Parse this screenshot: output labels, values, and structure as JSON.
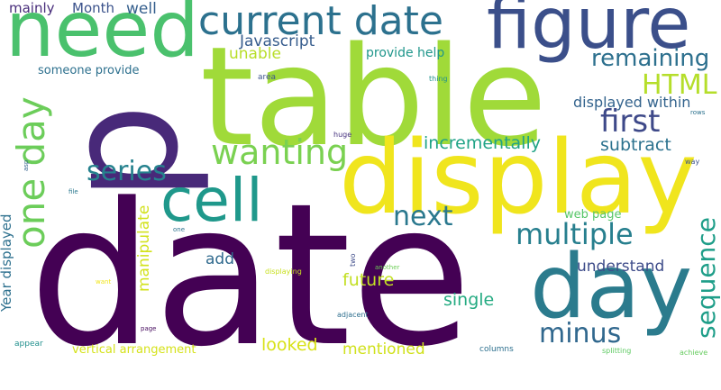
{
  "wordcloud": {
    "words": [
      {
        "text": "date",
        "color": "#440154"
      },
      {
        "text": "table",
        "color": "#a0da39"
      },
      {
        "text": "display",
        "color": "#f0e51d"
      },
      {
        "text": "figure",
        "color": "#3b4f8a"
      },
      {
        "text": "need",
        "color": "#4ac16d"
      },
      {
        "text": "day",
        "color": "#2b7b8d"
      },
      {
        "text": "p",
        "color": "#482979"
      },
      {
        "text": "current date",
        "color": "#2c718e"
      },
      {
        "text": "cell",
        "color": "#1f988b"
      },
      {
        "text": "one day",
        "color": "#6ccd5a"
      },
      {
        "text": "wanting",
        "color": "#7ad151"
      },
      {
        "text": "series",
        "color": "#26828e"
      },
      {
        "text": "multiple",
        "color": "#277f8e"
      },
      {
        "text": "next",
        "color": "#2a788e"
      },
      {
        "text": "first",
        "color": "#3e4989"
      },
      {
        "text": "HTML",
        "color": "#b5de2b"
      },
      {
        "text": "remaining",
        "color": "#2d708e"
      },
      {
        "text": "sequence",
        "color": "#1f9e89"
      },
      {
        "text": "minus",
        "color": "#31688e"
      },
      {
        "text": "incrementally",
        "color": "#20a386"
      },
      {
        "text": "subtract",
        "color": "#2c728e"
      },
      {
        "text": "displayed within",
        "color": "#33638d"
      },
      {
        "text": "Javascript",
        "color": "#365c8d"
      },
      {
        "text": "unable",
        "color": "#b8de29"
      },
      {
        "text": "mainly",
        "color": "#472c7a"
      },
      {
        "text": "Month",
        "color": "#3b528b"
      },
      {
        "text": "well",
        "color": "#355f8d"
      },
      {
        "text": "provide help",
        "color": "#1f968b"
      },
      {
        "text": "someone provide",
        "color": "#2d708e"
      },
      {
        "text": "Year displayed",
        "color": "#2d708e"
      },
      {
        "text": "manipulate",
        "color": "#d2e21b"
      },
      {
        "text": "add",
        "color": "#306a8e"
      },
      {
        "text": "future",
        "color": "#c2df23"
      },
      {
        "text": "understand",
        "color": "#3e4c8a"
      },
      {
        "text": "single",
        "color": "#25ab82"
      },
      {
        "text": "looked",
        "color": "#d8e219"
      },
      {
        "text": "mentioned",
        "color": "#d0e11c"
      },
      {
        "text": "vertical arrangement",
        "color": "#d5e21a"
      },
      {
        "text": "web page",
        "color": "#56c667"
      },
      {
        "text": "area",
        "color": "#3b528b"
      },
      {
        "text": "thing",
        "color": "#21918c"
      },
      {
        "text": "rows",
        "color": "#2c728e"
      },
      {
        "text": "huge",
        "color": "#46327e"
      },
      {
        "text": "way",
        "color": "#3b528b"
      },
      {
        "text": "asp",
        "color": "#33638d"
      },
      {
        "text": "file",
        "color": "#2a788e"
      },
      {
        "text": "one",
        "color": "#2c718e"
      },
      {
        "text": "two",
        "color": "#3e4c8a"
      },
      {
        "text": "displaying",
        "color": "#c8e020"
      },
      {
        "text": "another",
        "color": "#6ece58"
      },
      {
        "text": "want",
        "color": "#f1e51d"
      },
      {
        "text": "page",
        "color": "#460b5e"
      },
      {
        "text": "adjacent",
        "color": "#2e6f8e"
      },
      {
        "text": "appear",
        "color": "#21908d"
      },
      {
        "text": "columns",
        "color": "#2d708e"
      },
      {
        "text": "splitting",
        "color": "#5ec962"
      },
      {
        "text": "achieve",
        "color": "#65cb5e"
      }
    ]
  }
}
